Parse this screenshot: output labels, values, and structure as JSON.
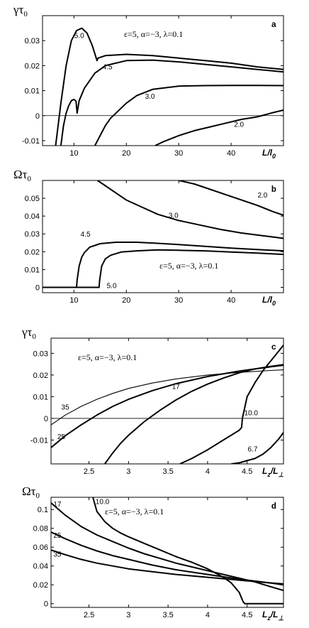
{
  "chart_data": [
    {
      "type": "line",
      "panel_letter": "a",
      "parameters": "ε=5, α=−3, λ=0.1",
      "ylabel": "γτ",
      "ylabel_sub": "0",
      "xlabel": "L/l",
      "xlabel_sub": "0",
      "xlim": [
        4,
        50
      ],
      "ylim": [
        -0.012,
        0.04
      ],
      "xticks": [
        "10",
        "20",
        "30",
        "40"
      ],
      "yticks": [
        "-0.01",
        "0",
        "0.01",
        "0.02",
        "0.03"
      ],
      "reference_line": 0,
      "series": [
        {
          "name": "5.0",
          "x": [
            6.5,
            7.5,
            8.5,
            9.5,
            10.5,
            11.5,
            12.5,
            13.5,
            14.4,
            14.6,
            16,
            20,
            25,
            30,
            35,
            40,
            45,
            50
          ],
          "y": [
            -0.012,
            0.005,
            0.02,
            0.03,
            0.034,
            0.035,
            0.033,
            0.028,
            0.022,
            0.023,
            0.024,
            0.0245,
            0.024,
            0.023,
            0.022,
            0.021,
            0.0195,
            0.0185
          ]
        },
        {
          "name": "4.5",
          "x": [
            7.5,
            8,
            8.5,
            9,
            9.5,
            10,
            10.4,
            10.6,
            11,
            12,
            14,
            16,
            20,
            25,
            30,
            35,
            40,
            45,
            50
          ],
          "y": [
            -0.012,
            -0.004,
            0.001,
            0.004,
            0.006,
            0.0065,
            0.0058,
            0.001,
            0.006,
            0.011,
            0.017,
            0.02,
            0.022,
            0.0222,
            0.0215,
            0.0205,
            0.0195,
            0.0185,
            0.0175
          ]
        },
        {
          "name": "3.0",
          "x": [
            14,
            15,
            16,
            17,
            18,
            20,
            22,
            25,
            30,
            35,
            40,
            45,
            50
          ],
          "y": [
            -0.012,
            -0.008,
            -0.004,
            -0.001,
            0.001,
            0.005,
            0.008,
            0.0105,
            0.0118,
            0.012,
            0.0121,
            0.0121,
            0.012
          ]
        },
        {
          "name": "2.0",
          "x": [
            25.5,
            27,
            30,
            33,
            36,
            39,
            42,
            45,
            48,
            50
          ],
          "y": [
            -0.012,
            -0.0105,
            -0.008,
            -0.006,
            -0.0045,
            -0.003,
            -0.0015,
            -0.0005,
            0.0012,
            0.0022
          ]
        }
      ]
    },
    {
      "type": "line",
      "panel_letter": "b",
      "parameters": "ε=5, α=−3, λ=0.1",
      "ylabel": "Ωτ",
      "ylabel_sub": "0",
      "xlabel": "L/l",
      "xlabel_sub": "0",
      "xlim": [
        4,
        50
      ],
      "ylim": [
        -0.003,
        0.06
      ],
      "xticks": [
        "10",
        "20",
        "30",
        "40"
      ],
      "yticks": [
        "0",
        "0.01",
        "0.02",
        "0.03",
        "0.04",
        "0.05"
      ],
      "series": [
        {
          "name": "2.0",
          "x": [
            30,
            33,
            36,
            39,
            42,
            45,
            48,
            50
          ],
          "y": [
            0.06,
            0.058,
            0.055,
            0.052,
            0.049,
            0.046,
            0.0425,
            0.0405
          ]
        },
        {
          "name": "3.0",
          "x": [
            14.5,
            16,
            18,
            20,
            23,
            26,
            30,
            34,
            38,
            42,
            46,
            50
          ],
          "y": [
            0.06,
            0.057,
            0.053,
            0.049,
            0.045,
            0.041,
            0.0375,
            0.035,
            0.0325,
            0.0305,
            0.029,
            0.0275
          ]
        },
        {
          "name": "4.5",
          "x": [
            4,
            10.5,
            10.6,
            11,
            11.5,
            12,
            13,
            15,
            18,
            22,
            26,
            30,
            35,
            40,
            45,
            50
          ],
          "y": [
            0,
            0,
            0.004,
            0.012,
            0.017,
            0.0195,
            0.0225,
            0.0245,
            0.0253,
            0.0253,
            0.0247,
            0.024,
            0.023,
            0.022,
            0.0212,
            0.0205
          ]
        },
        {
          "name": "5.0",
          "x": [
            4,
            14.8,
            14.9,
            15.3,
            16,
            17,
            19,
            22,
            26,
            30,
            35,
            40,
            45,
            50
          ],
          "y": [
            0,
            0,
            0.004,
            0.012,
            0.016,
            0.018,
            0.0198,
            0.0205,
            0.021,
            0.0208,
            0.0205,
            0.0198,
            0.0192,
            0.0185
          ]
        }
      ]
    },
    {
      "type": "line",
      "panel_letter": "c",
      "parameters": "ε=5, α=−3, λ=0.1",
      "ylabel": "γτ",
      "ylabel_sub": "0",
      "xlabel": "L",
      "xlabel_sub": "z",
      "xlabel_tail": "/L",
      "xlabel_tail_sub": "⊥",
      "xlim": [
        2.02,
        4.96
      ],
      "ylim": [
        -0.021,
        0.037
      ],
      "xticks": [
        "2.5",
        "3",
        "3.5",
        "4",
        "4.5"
      ],
      "yticks": [
        "-0.01",
        "0",
        "0.01",
        "0.02",
        "0.03"
      ],
      "reference_line": 0,
      "series": [
        {
          "name": "35",
          "x": [
            2.02,
            2.2,
            2.4,
            2.6,
            2.8,
            3.0,
            3.3,
            3.6,
            4.0,
            4.4,
            4.8,
            4.96
          ],
          "y": [
            -0.003,
            0.0015,
            0.0055,
            0.0088,
            0.0115,
            0.0138,
            0.0163,
            0.0182,
            0.02,
            0.0212,
            0.0221,
            0.0224
          ]
        },
        {
          "name": "25",
          "x": [
            2.02,
            2.2,
            2.4,
            2.6,
            2.8,
            3.0,
            3.3,
            3.6,
            4.0,
            4.4,
            4.8,
            4.96
          ],
          "y": [
            -0.0135,
            -0.008,
            -0.003,
            0.0015,
            0.0055,
            0.0088,
            0.0128,
            0.016,
            0.0193,
            0.0218,
            0.0238,
            0.0245
          ]
        },
        {
          "name": "17",
          "x": [
            2.7,
            2.8,
            2.9,
            3.0,
            3.2,
            3.4,
            3.6,
            3.8,
            4.0,
            4.2,
            4.4,
            4.6,
            4.8,
            4.96
          ],
          "y": [
            -0.021,
            -0.016,
            -0.0115,
            -0.0078,
            -0.0015,
            0.0038,
            0.0085,
            0.0125,
            0.0158,
            0.0186,
            0.021,
            0.0228,
            0.024,
            0.0248
          ]
        },
        {
          "name": "10.0",
          "x": [
            3.65,
            3.8,
            4.0,
            4.2,
            4.4,
            4.43,
            4.44,
            4.5,
            4.6,
            4.7,
            4.8,
            4.9,
            4.96
          ],
          "y": [
            -0.021,
            -0.0185,
            -0.0145,
            -0.01,
            -0.0055,
            -0.0042,
            0.0,
            0.01,
            0.0165,
            0.022,
            0.0265,
            0.031,
            0.0338
          ]
        },
        {
          "name": "6.7",
          "x": [
            4.3,
            4.4,
            4.5,
            4.6,
            4.7,
            4.8,
            4.9,
            4.96
          ],
          "y": [
            -0.021,
            -0.0205,
            -0.0195,
            -0.0185,
            -0.0165,
            -0.0135,
            -0.0095,
            -0.0065
          ]
        }
      ]
    },
    {
      "type": "line",
      "panel_letter": "d",
      "parameters": "ε=5, α=−3, λ=0.1",
      "ylabel": "Ωτ",
      "ylabel_sub": "0",
      "xlabel": "L",
      "xlabel_sub": "z",
      "xlabel_tail": "/L",
      "xlabel_tail_sub": "⊥",
      "xlim": [
        2.02,
        4.96
      ],
      "ylim": [
        -0.004,
        0.113
      ],
      "xticks": [
        "2.5",
        "3",
        "3.5",
        "4",
        "4.5"
      ],
      "yticks": [
        "0",
        "0.02",
        "0.04",
        "0.06",
        "0.08",
        "0.1"
      ],
      "series": [
        {
          "name": "17",
          "x": [
            2.02,
            2.2,
            2.4,
            2.6,
            2.8,
            3.0,
            3.2,
            3.4,
            3.6,
            3.8,
            4.0,
            4.2,
            4.4,
            4.6,
            4.8,
            4.96
          ],
          "y": [
            0.107,
            0.094,
            0.082,
            0.073,
            0.066,
            0.059,
            0.053,
            0.048,
            0.043,
            0.039,
            0.035,
            0.031,
            0.027,
            0.023,
            0.018,
            0.014
          ]
        },
        {
          "name": "10.0",
          "x": [
            2.55,
            2.6,
            2.7,
            2.8,
            2.9,
            3.0,
            3.2,
            3.4,
            3.6,
            3.8,
            4.0,
            4.2,
            4.3,
            4.4,
            4.45,
            4.47,
            4.96
          ],
          "y": [
            0.113,
            0.098,
            0.087,
            0.08,
            0.075,
            0.071,
            0.064,
            0.057,
            0.05,
            0.044,
            0.037,
            0.028,
            0.022,
            0.012,
            0.002,
            0.0,
            0.0
          ]
        },
        {
          "name": "25",
          "x": [
            2.02,
            2.2,
            2.4,
            2.6,
            2.8,
            3.0,
            3.3,
            3.6,
            4.0,
            4.4,
            4.8,
            4.96
          ],
          "y": [
            0.076,
            0.069,
            0.062,
            0.056,
            0.051,
            0.047,
            0.041,
            0.036,
            0.031,
            0.026,
            0.022,
            0.02
          ]
        },
        {
          "name": "35",
          "x": [
            2.02,
            2.2,
            2.4,
            2.6,
            2.8,
            3.0,
            3.3,
            3.6,
            4.0,
            4.4,
            4.8,
            4.96
          ],
          "y": [
            0.057,
            0.052,
            0.047,
            0.043,
            0.04,
            0.037,
            0.034,
            0.031,
            0.028,
            0.025,
            0.022,
            0.021
          ]
        }
      ]
    }
  ]
}
